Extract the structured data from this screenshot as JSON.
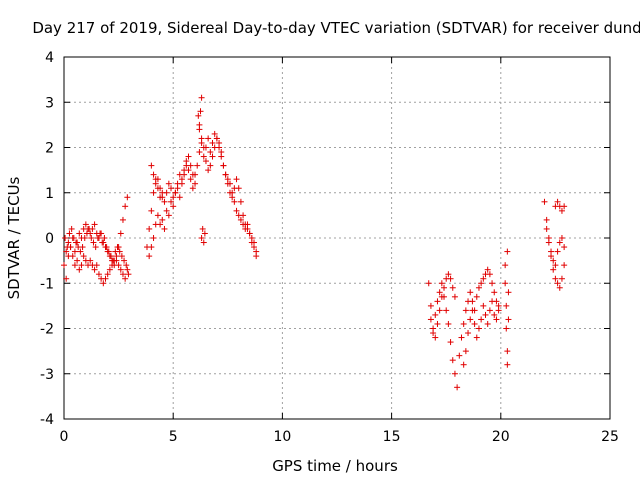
{
  "chart_data": {
    "type": "scatter",
    "title": "Day 217 of 2019, Sidereal Day-to-day VTEC variation (SDTVAR) for receiver dund",
    "xlabel": "GPS time / hours",
    "ylabel": "SDTVAR / TECUs",
    "xlim": [
      0,
      25
    ],
    "ylim": [
      -4,
      4
    ],
    "xticks": [
      0,
      5,
      10,
      15,
      20,
      25
    ],
    "yticks": [
      -4,
      -3,
      -2,
      -1,
      0,
      1,
      2,
      3,
      4
    ],
    "grid": true,
    "marker": "plus",
    "color": "#e00000",
    "series": [
      {
        "name": "SDTVAR",
        "x": [
          0.0,
          0.1,
          0.2,
          0.3,
          0.4,
          0.5,
          0.6,
          0.7,
          0.8,
          0.9,
          1.0,
          1.1,
          1.2,
          1.3,
          1.4,
          1.5,
          1.6,
          1.7,
          1.8,
          1.9,
          2.0,
          2.1,
          2.2,
          2.3,
          2.4,
          2.5,
          2.6,
          2.7,
          2.8,
          2.9,
          0.1,
          0.2,
          0.3,
          0.4,
          0.5,
          0.6,
          0.7,
          0.8,
          0.9,
          1.0,
          1.1,
          1.2,
          1.3,
          1.4,
          1.5,
          1.6,
          1.7,
          1.8,
          1.9,
          2.0,
          2.1,
          2.2,
          2.3,
          2.4,
          2.5,
          2.6,
          2.7,
          2.8,
          2.9,
          0.05,
          0.15,
          0.25,
          0.35,
          0.45,
          0.55,
          0.65,
          0.75,
          0.85,
          0.95,
          1.05,
          1.15,
          1.25,
          1.35,
          1.45,
          1.55,
          1.65,
          1.75,
          1.85,
          1.95,
          2.05,
          2.15,
          2.25,
          2.35,
          2.45,
          2.55,
          2.65,
          2.75,
          2.85,
          2.95,
          3.8,
          3.9,
          4.0,
          4.1,
          4.2,
          4.3,
          4.4,
          4.5,
          4.6,
          4.7,
          4.8,
          4.9,
          5.0,
          5.1,
          5.2,
          5.3,
          5.4,
          5.5,
          5.6,
          5.7,
          5.8,
          5.9,
          6.0,
          3.9,
          4.0,
          4.1,
          4.2,
          4.3,
          4.4,
          4.5,
          4.6,
          4.7,
          4.8,
          4.9,
          5.0,
          5.1,
          5.2,
          5.3,
          5.4,
          5.5,
          5.6,
          5.7,
          5.8,
          5.9,
          4.0,
          4.1,
          4.2,
          4.3,
          4.4,
          4.5,
          6.0,
          6.1,
          6.2,
          6.3,
          6.4,
          6.5,
          6.6,
          6.7,
          6.8,
          6.9,
          7.0,
          7.1,
          7.2,
          7.3,
          7.4,
          7.5,
          7.6,
          7.7,
          7.8,
          7.9,
          8.0,
          8.1,
          8.2,
          8.3,
          8.4,
          8.5,
          8.6,
          8.7,
          8.8,
          6.2,
          6.3,
          6.4,
          6.5,
          6.6,
          6.7,
          6.8,
          6.9,
          7.0,
          7.1,
          7.2,
          7.3,
          7.4,
          7.5,
          7.6,
          7.7,
          7.8,
          7.9,
          8.0,
          8.1,
          8.2,
          8.3,
          8.4,
          8.5,
          8.6,
          8.7,
          8.8,
          6.3,
          6.25,
          6.2,
          6.15,
          6.3,
          6.35,
          6.4,
          6.45,
          16.7,
          16.8,
          16.9,
          17.0,
          17.1,
          17.2,
          17.3,
          17.4,
          17.5,
          17.6,
          17.7,
          17.8,
          17.9,
          16.8,
          16.9,
          17.0,
          17.1,
          17.2,
          17.3,
          17.4,
          17.5,
          17.6,
          17.7,
          17.8,
          17.9,
          18.0,
          18.1,
          18.2,
          18.3,
          18.4,
          18.5,
          18.6,
          18.7,
          18.8,
          18.9,
          19.0,
          19.1,
          19.2,
          19.3,
          19.4,
          19.5,
          19.6,
          19.7,
          19.8,
          19.9,
          18.3,
          18.4,
          18.5,
          18.6,
          18.7,
          18.8,
          18.9,
          19.0,
          19.1,
          19.2,
          19.3,
          19.4,
          19.5,
          19.6,
          19.7,
          19.8,
          19.9,
          20.2,
          20.2,
          20.25,
          20.25,
          20.3,
          20.3,
          20.3,
          20.35,
          20.35,
          22.0,
          22.1,
          22.2,
          22.3,
          22.4,
          22.5,
          22.6,
          22.7,
          22.8,
          22.9,
          22.1,
          22.2,
          22.3,
          22.4,
          22.5,
          22.6,
          22.7,
          22.8,
          22.9,
          22.5,
          22.6,
          22.7,
          22.8,
          22.9
        ],
        "y": [
          -0.6,
          -0.9,
          -0.4,
          -0.2,
          0.0,
          -0.3,
          -0.1,
          0.1,
          0.0,
          0.2,
          0.3,
          0.2,
          0.1,
          0.2,
          0.3,
          0.1,
          0.0,
          0.1,
          -0.1,
          -0.2,
          -0.3,
          -0.4,
          -0.5,
          -0.6,
          -0.5,
          -0.6,
          -0.7,
          -0.8,
          -0.9,
          -0.7,
          -0.3,
          -0.1,
          -0.2,
          -0.4,
          -0.6,
          -0.5,
          -0.7,
          -0.6,
          -0.4,
          -0.5,
          -0.6,
          -0.5,
          -0.6,
          -0.7,
          -0.6,
          -0.8,
          -0.9,
          -1.0,
          -0.9,
          -0.8,
          -0.7,
          -0.6,
          -0.5,
          -0.4,
          -0.2,
          0.1,
          0.4,
          0.7,
          0.9,
          0.0,
          -0.2,
          0.1,
          0.2,
          0.0,
          -0.1,
          -0.2,
          -0.3,
          -0.2,
          0.0,
          0.1,
          0.2,
          0.0,
          -0.1,
          -0.2,
          0.0,
          0.1,
          -0.1,
          0.0,
          -0.2,
          -0.3,
          -0.4,
          -0.5,
          -0.3,
          -0.2,
          -0.3,
          -0.4,
          -0.5,
          -0.6,
          -0.8,
          -0.2,
          0.2,
          0.6,
          1.0,
          1.3,
          1.1,
          0.9,
          1.0,
          0.8,
          1.0,
          1.2,
          1.1,
          0.9,
          1.0,
          1.2,
          1.4,
          1.3,
          1.5,
          1.7,
          1.8,
          1.6,
          1.4,
          1.2,
          -0.4,
          -0.2,
          0.0,
          0.3,
          0.5,
          0.3,
          0.4,
          0.2,
          0.6,
          0.5,
          0.8,
          0.7,
          1.0,
          1.1,
          0.9,
          1.2,
          1.4,
          1.6,
          1.5,
          1.3,
          1.1,
          1.6,
          1.4,
          1.2,
          1.3,
          1.1,
          0.9,
          1.4,
          1.6,
          1.9,
          2.1,
          1.8,
          2.0,
          2.2,
          1.9,
          2.1,
          2.3,
          2.2,
          2.0,
          1.8,
          1.6,
          1.4,
          1.2,
          1.0,
          0.9,
          1.1,
          1.3,
          1.1,
          0.8,
          0.5,
          0.3,
          0.2,
          0.1,
          -0.1,
          -0.2,
          -0.4,
          2.4,
          2.2,
          2.0,
          1.7,
          1.5,
          1.6,
          1.8,
          2.0,
          2.2,
          2.1,
          1.9,
          1.6,
          1.4,
          1.3,
          1.2,
          1.0,
          0.8,
          0.6,
          0.5,
          0.4,
          0.3,
          0.2,
          0.3,
          0.1,
          0.0,
          -0.1,
          -0.3,
          3.1,
          2.8,
          2.5,
          2.7,
          0.0,
          0.2,
          -0.1,
          0.1,
          -1.0,
          -1.5,
          -2.0,
          -2.2,
          -1.9,
          -1.6,
          -1.3,
          -1.1,
          -0.9,
          -0.8,
          -0.9,
          -1.1,
          -1.3,
          -1.8,
          -2.1,
          -1.7,
          -1.4,
          -1.2,
          -1.0,
          -1.3,
          -1.6,
          -1.9,
          -2.3,
          -2.7,
          -3.0,
          -3.3,
          -2.6,
          -2.2,
          -1.9,
          -1.6,
          -1.4,
          -1.2,
          -1.4,
          -1.6,
          -1.3,
          -1.1,
          -1.0,
          -0.9,
          -0.8,
          -0.7,
          -0.8,
          -1.0,
          -1.2,
          -1.4,
          -1.6,
          -2.8,
          -2.5,
          -2.1,
          -1.8,
          -1.6,
          -1.9,
          -2.2,
          -2.0,
          -1.8,
          -1.5,
          -1.7,
          -1.9,
          -1.6,
          -1.4,
          -1.7,
          -1.8,
          -1.5,
          -0.6,
          -1.0,
          -1.5,
          -2.0,
          -2.5,
          -2.8,
          -0.3,
          -1.2,
          -1.8,
          0.8,
          0.4,
          0.0,
          -0.4,
          -0.7,
          -0.9,
          -1.0,
          -1.1,
          -0.9,
          -0.6,
          0.2,
          -0.1,
          -0.3,
          -0.5,
          -0.6,
          -0.3,
          -0.1,
          0.0,
          -0.2,
          0.7,
          0.8,
          0.7,
          0.6,
          0.7
        ]
      }
    ]
  }
}
